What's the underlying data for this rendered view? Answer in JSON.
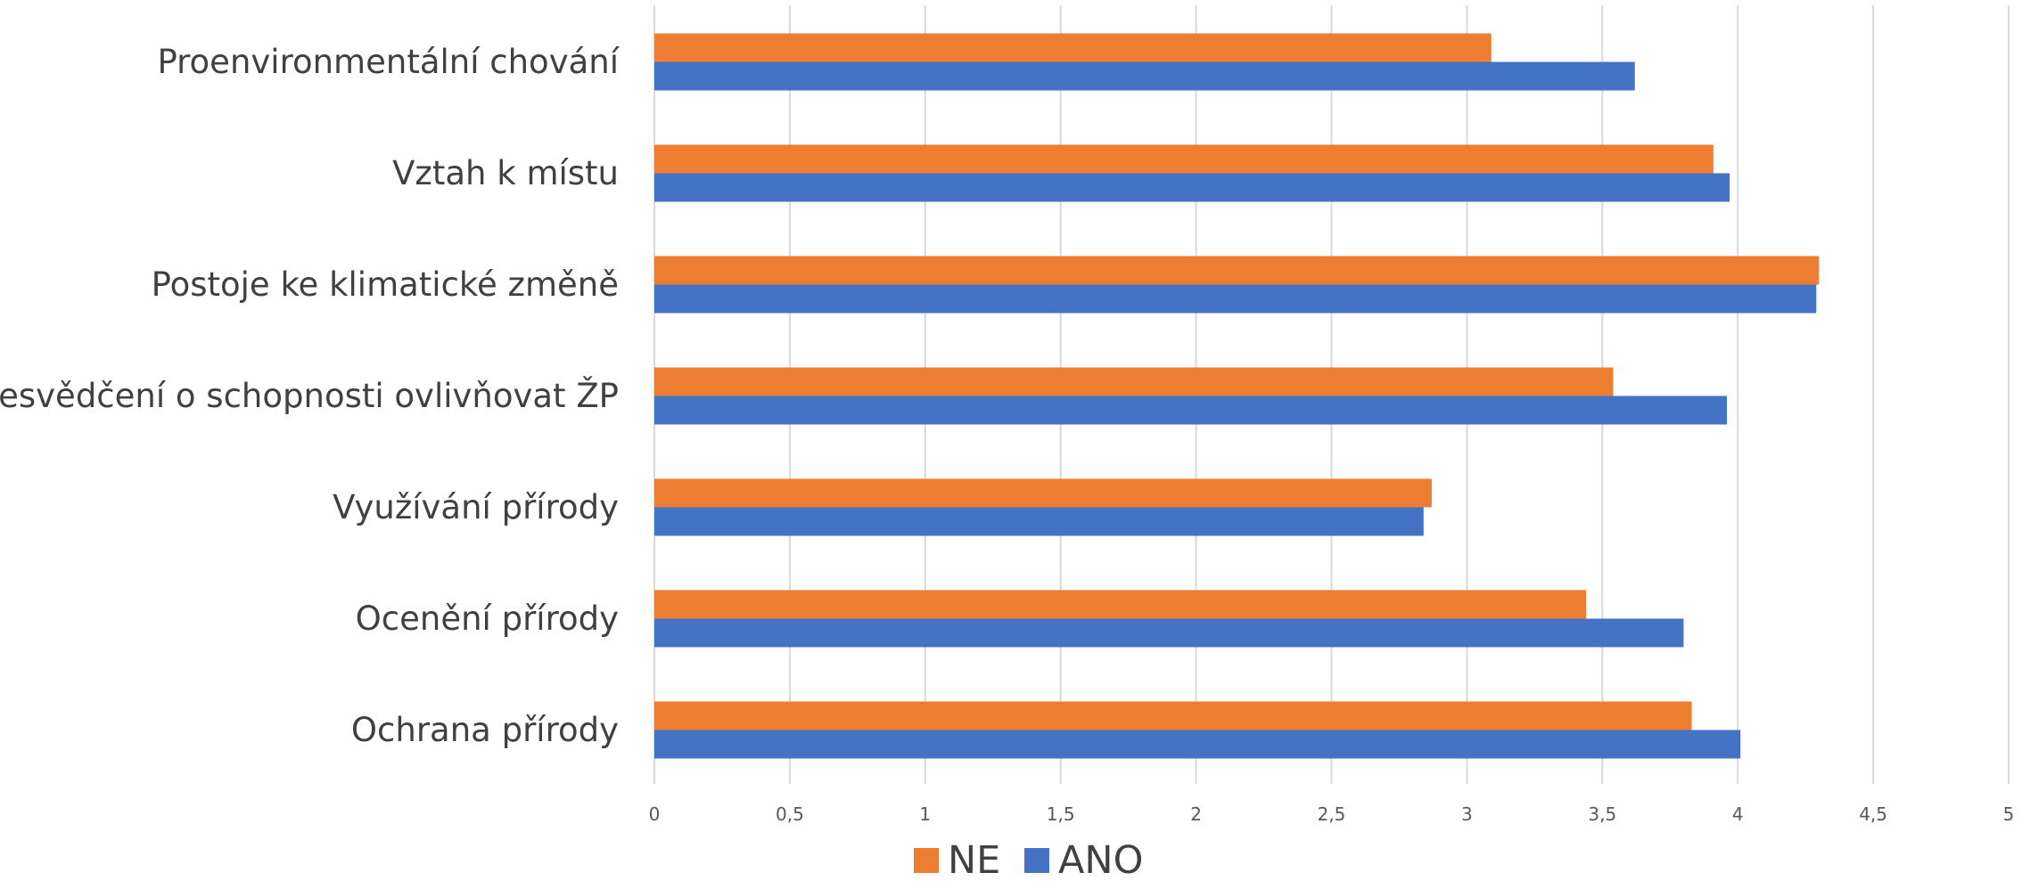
{
  "chart_data": {
    "type": "bar",
    "orientation": "horizontal",
    "categories": [
      "Proenvironmentální chování",
      "Vztah k místu",
      "Postoje ke klimatické změně",
      "Přesvědčení o schopnosti ovlivňovat ŽP",
      "Využívání přírody",
      "Ocenění přírody",
      "Ochrana přírody"
    ],
    "series": [
      {
        "name": "NE",
        "color": "#ED7D31",
        "values": [
          3.09,
          3.91,
          4.3,
          3.54,
          2.87,
          3.44,
          3.83
        ]
      },
      {
        "name": "ANO",
        "color": "#4472C4",
        "values": [
          3.62,
          3.97,
          4.29,
          3.96,
          2.84,
          3.8,
          4.01
        ]
      }
    ],
    "xlim": [
      0,
      5
    ],
    "x_ticks": [
      "0",
      "0,5",
      "1",
      "1,5",
      "2",
      "2,5",
      "3",
      "3,5",
      "4",
      "4,5",
      "5"
    ],
    "x_tick_values": [
      0,
      0.5,
      1,
      1.5,
      2,
      2.5,
      3,
      3.5,
      4,
      4.5,
      5
    ],
    "grid": true,
    "legend": {
      "position": "bottom",
      "entries": [
        "NE",
        "ANO"
      ]
    },
    "title": "",
    "xlabel": "",
    "ylabel": ""
  }
}
